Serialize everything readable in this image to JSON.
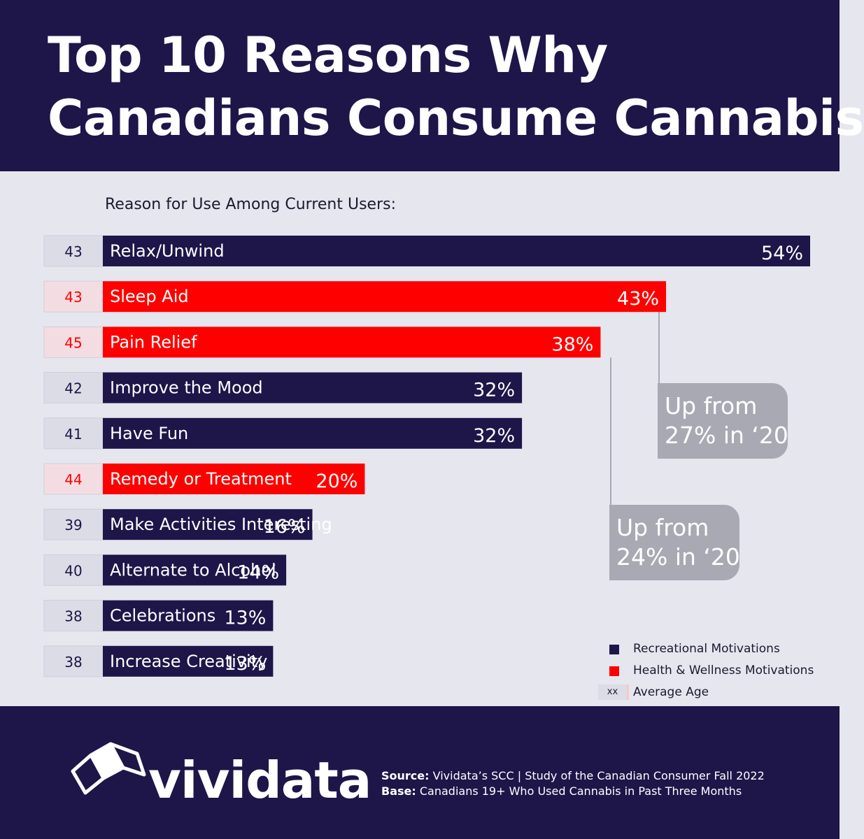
{
  "header": {
    "title_line1": "Top 10 Reasons Why",
    "title_line2": "Canadians Consume Cannabis"
  },
  "chart_data": {
    "type": "bar",
    "orientation": "horizontal",
    "title": "Top 10 Reasons Why Canadians Consume Cannabis",
    "subtitle": "Reason for Use Among Current Users:",
    "unit": "%",
    "xlim": [
      0,
      54
    ],
    "categories": [
      "Relax/Unwind",
      "Sleep Aid",
      "Pain Relief",
      "Improve the Mood",
      "Have Fun",
      "Remedy or Treatment",
      "Make Activities Interesting",
      "Alternate to Alcohol",
      "Celebrations",
      "Increase Creativity"
    ],
    "values": [
      54,
      43,
      38,
      32,
      32,
      20,
      16,
      14,
      13,
      13
    ],
    "value_labels": [
      "54%",
      "43%",
      "38%",
      "32%",
      "32%",
      "20%",
      "16%",
      "14%",
      "13%",
      "13%"
    ],
    "groups": [
      "recreational",
      "health",
      "health",
      "recreational",
      "recreational",
      "health",
      "recreational",
      "recreational",
      "recreational",
      "recreational"
    ],
    "average_age": [
      43,
      43,
      45,
      42,
      41,
      44,
      39,
      40,
      38,
      38
    ],
    "annotations": [
      {
        "target": "Sleep Aid",
        "line1": "Up from",
        "line2": "27% in ‘20"
      },
      {
        "target": "Pain Relief",
        "line1": "Up from",
        "line2": "24% in ‘20"
      }
    ],
    "legend": {
      "placement": "bottom-right",
      "recreational": "Recreational Motivations",
      "health": "Health & Wellness Motivations",
      "age_marker": "xx",
      "age": "Average Age"
    },
    "colors": {
      "recreational": "#1e1549",
      "health": "#ff0000",
      "age_box": "#dcdce6",
      "age_box_health": "#f4dde2",
      "callout": "#a9a9b3"
    }
  },
  "footer": {
    "logo_text": "vividata",
    "source_label": "Source:",
    "source_text": "Vividata’s SCC | Study of the Canadian Consumer Fall 2022",
    "base_label": "Base:",
    "base_text": "Canadians 19+ Who Used Cannabis in Past Three Months"
  }
}
